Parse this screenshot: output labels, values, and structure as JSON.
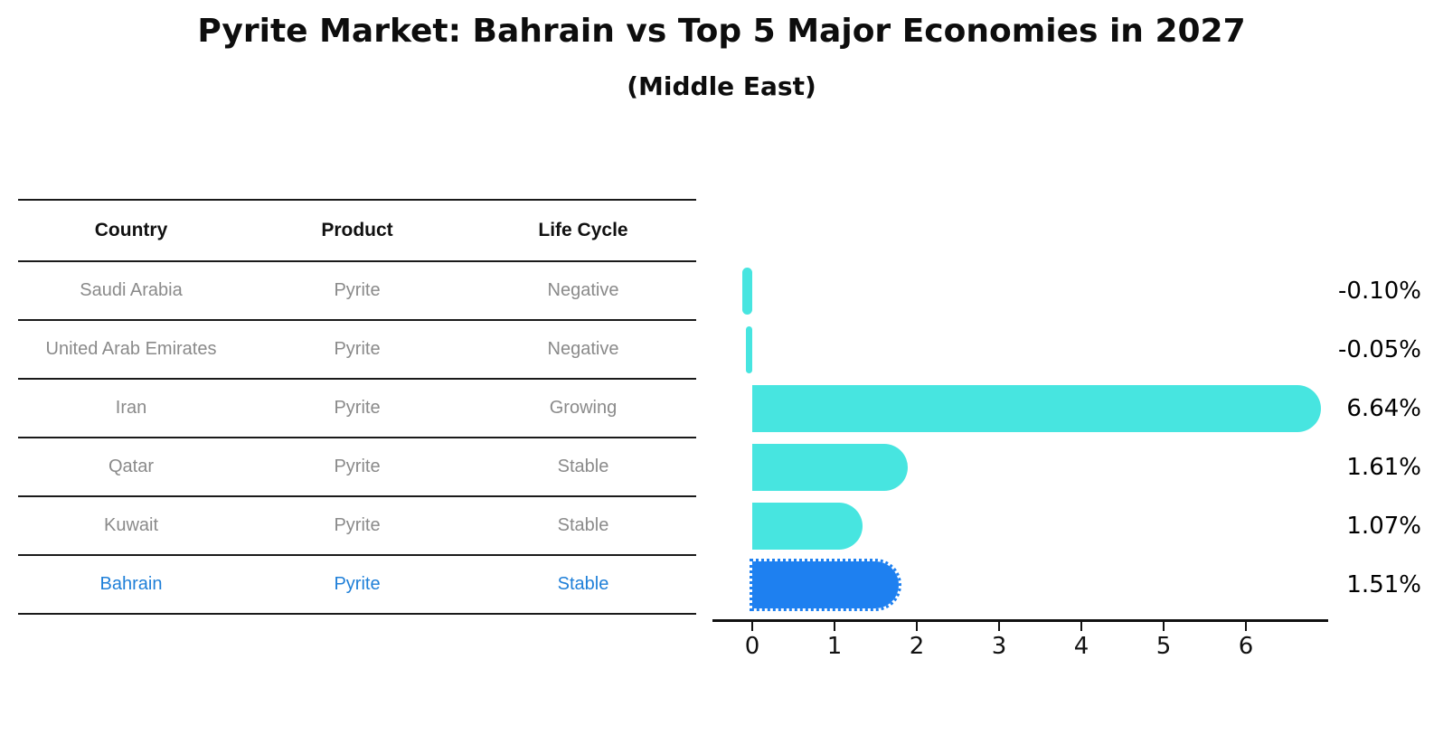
{
  "title": "Pyrite Market: Bahrain vs Top 5 Major Economies in 2027",
  "subtitle": "(Middle East)",
  "colors": {
    "bar_cyan": "#47E5E0",
    "bar_blue": "#1E80F0",
    "highlight_text_blue": "#1E7FD8",
    "row_text_gray": "#8A8A8A",
    "header_text": "#111111",
    "axis_black": "#111111"
  },
  "table": {
    "headers": [
      "Country",
      "Product",
      "Life Cycle"
    ],
    "rows": [
      {
        "country": "Saudi Arabia",
        "product": "Pyrite",
        "life_cycle": "Negative",
        "highlight": false
      },
      {
        "country": "United Arab Emirates",
        "product": "Pyrite",
        "life_cycle": "Negative",
        "highlight": false
      },
      {
        "country": "Iran",
        "product": "Pyrite",
        "life_cycle": "Growing",
        "highlight": false
      },
      {
        "country": "Qatar",
        "product": "Pyrite",
        "life_cycle": "Stable",
        "highlight": false
      },
      {
        "country": "Kuwait",
        "product": "Pyrite",
        "life_cycle": "Stable",
        "highlight": true
      }
    ],
    "highlight_row": {
      "country": "Bahrain",
      "product": "Pyrite",
      "life_cycle": "Stable"
    }
  },
  "chart_data": {
    "type": "bar",
    "orientation": "horizontal",
    "title": "Pyrite Market: Bahrain vs Top 5 Major Economies in 2027",
    "subtitle": "(Middle East)",
    "categories": [
      "Saudi Arabia",
      "United Arab Emirates",
      "Iran",
      "Qatar",
      "Kuwait",
      "Bahrain"
    ],
    "values": [
      -0.1,
      -0.05,
      6.64,
      1.61,
      1.07,
      1.51
    ],
    "value_labels": [
      "-0.10%",
      "-0.05%",
      "6.64%",
      "1.61%",
      "1.07%",
      "1.51%"
    ],
    "highlight_index": 5,
    "xlabel": "",
    "ylabel": "",
    "xticks": [
      0,
      1,
      2,
      3,
      4,
      5,
      6
    ],
    "xlim": [
      -0.5,
      7.0
    ],
    "grid": false,
    "legend": "none"
  }
}
